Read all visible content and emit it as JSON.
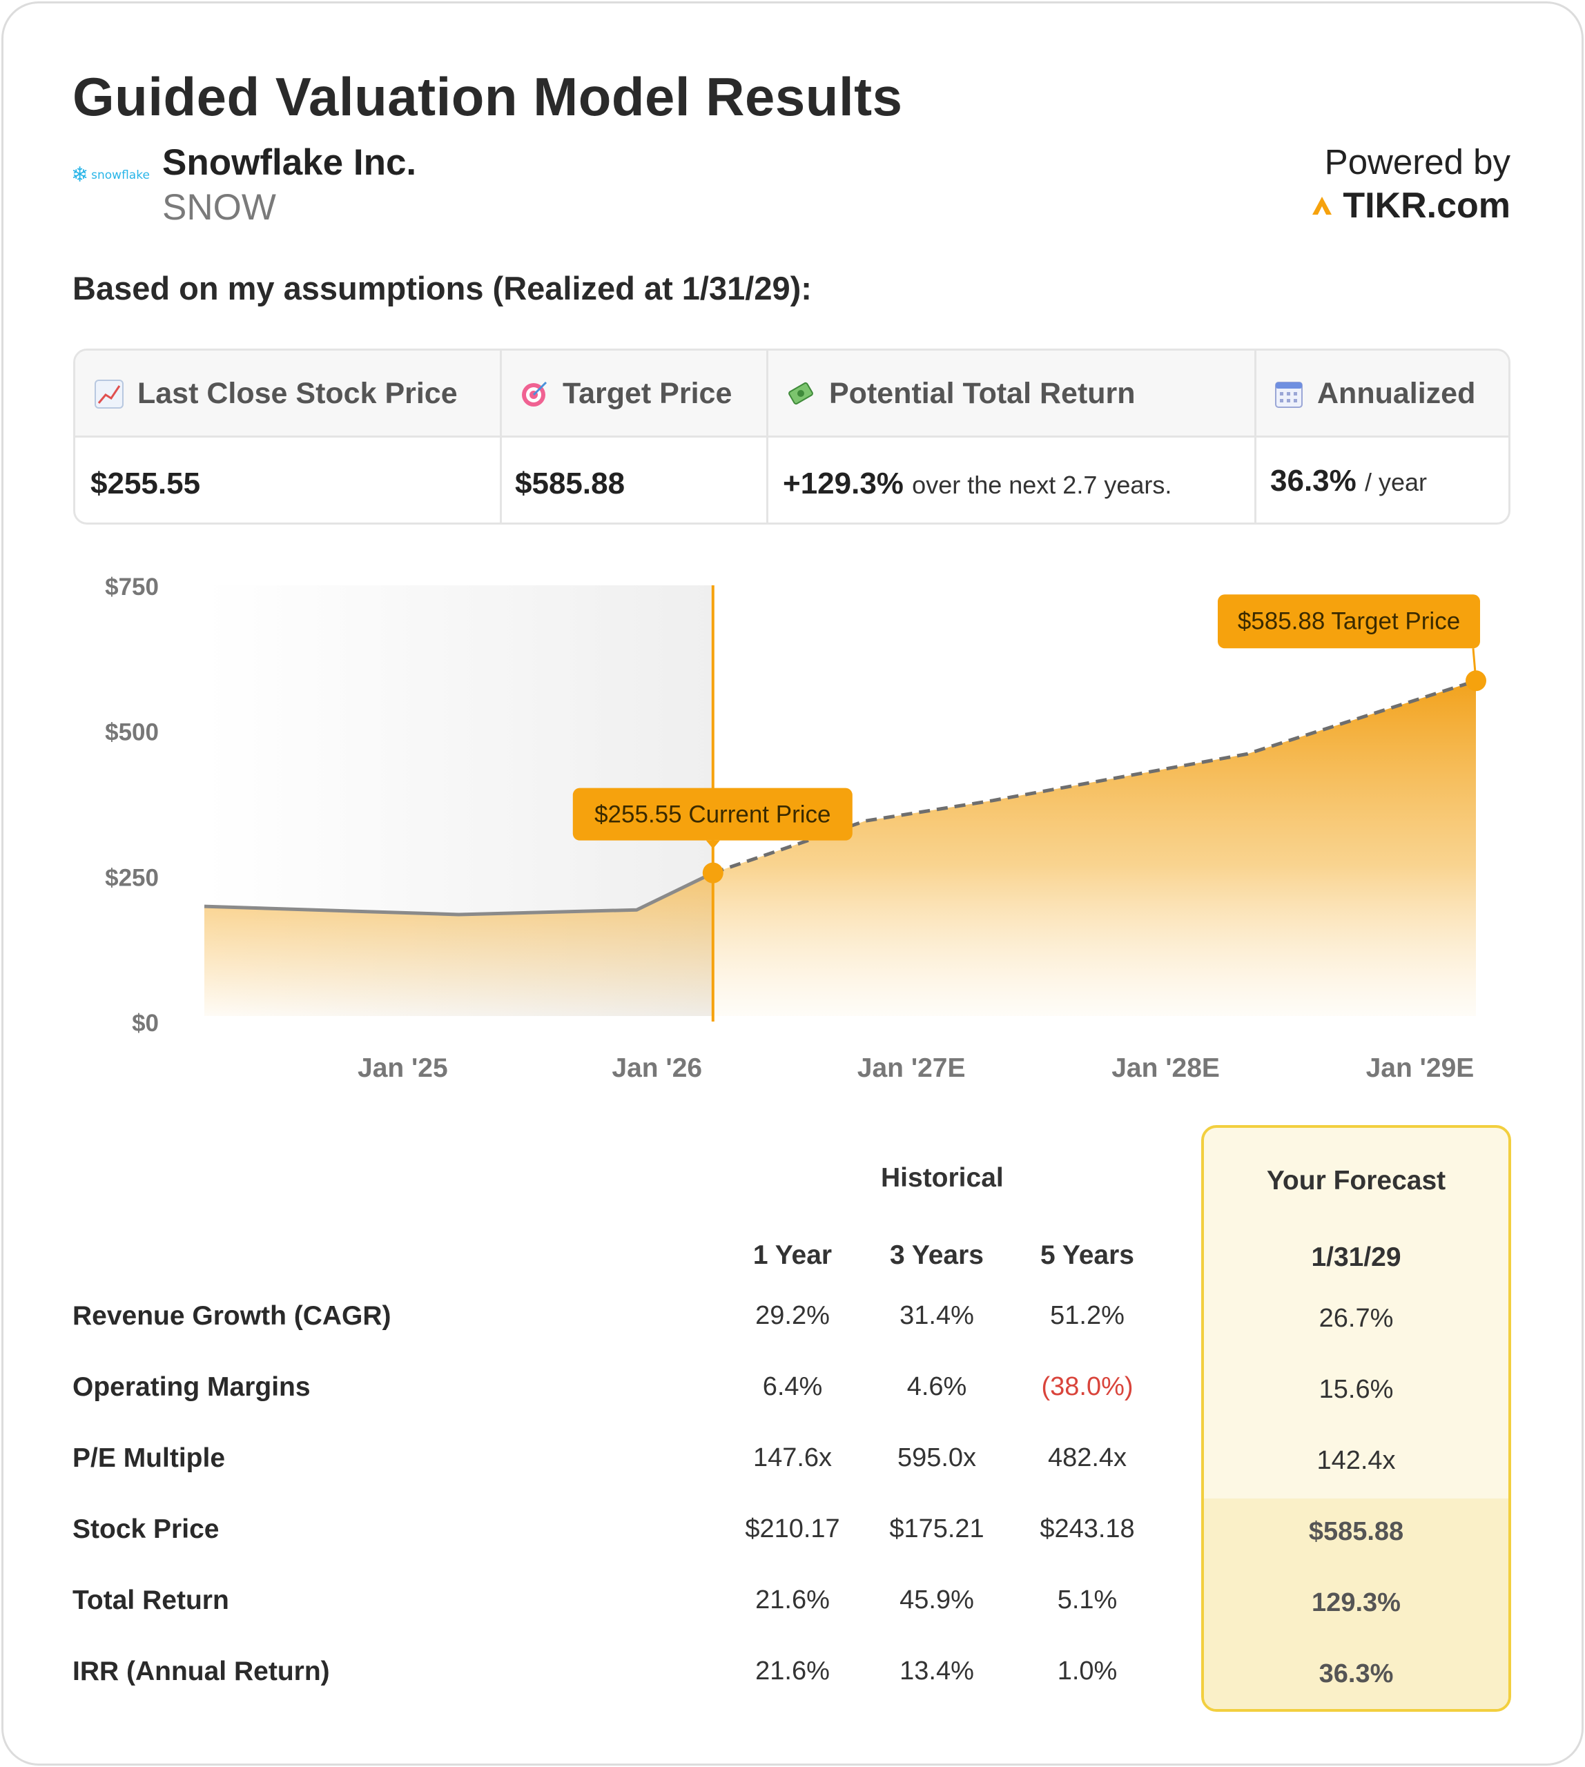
{
  "header": {
    "title": "Guided Valuation Model Results",
    "logo_text": "snowflake",
    "company": "Snowflake Inc.",
    "ticker": "SNOW",
    "powered_by": "Powered by",
    "brand": "TIKR.com",
    "assumptions": "Based on my assumptions (Realized at 1/31/29):"
  },
  "metrics": {
    "last_close": {
      "label": "Last Close Stock Price",
      "icon": "chart-increasing-icon",
      "value": "$255.55"
    },
    "target": {
      "label": "Target Price",
      "icon": "target-icon",
      "value": "$585.88"
    },
    "total_return": {
      "label": "Potential Total Return",
      "icon": "money-icon",
      "value": "+129.3%",
      "sub": "over the next 2.7 years."
    },
    "annualized": {
      "label": "Annualized",
      "icon": "calendar-icon",
      "value": "36.3%",
      "sub": "/ year"
    }
  },
  "colors": {
    "accent": "#f6a20d",
    "line_gray": "#8a8a8a",
    "negative": "#d9443b",
    "forecast_bg": "#fdf8e4",
    "forecast_border": "#f2cf3f"
  },
  "chart_data": {
    "type": "area",
    "y_ticks": [
      "$750",
      "$500",
      "$250",
      "$0"
    ],
    "y_tick_values": [
      750,
      500,
      250,
      0
    ],
    "ylim": [
      0,
      750
    ],
    "x_ticks": [
      "Jan '25",
      "Jan '26",
      "Jan '27E",
      "Jan '28E",
      "Jan '29E"
    ],
    "x_tick_values": [
      2025.08,
      2026.08,
      2027.08,
      2028.08,
      2029.08
    ],
    "xlim": [
      2024.3,
      2029.3
    ],
    "historical": {
      "x": [
        2024.3,
        2025.3,
        2026.0,
        2026.3
      ],
      "y": [
        198,
        184,
        192,
        255.55
      ]
    },
    "forecast": {
      "x": [
        2026.3,
        2026.9,
        2027.4,
        2027.9,
        2028.4,
        2029.3
      ],
      "y": [
        255.55,
        345,
        380,
        420,
        460,
        585.88
      ]
    },
    "current": {
      "x": 2026.3,
      "y": 255.55,
      "label": "$255.55 Current Price"
    },
    "target": {
      "x": 2029.3,
      "y": 585.88,
      "label": "$585.88 Target Price"
    },
    "grid": false
  },
  "table": {
    "historical_label": "Historical",
    "forecast_label": "Your Forecast",
    "columns": [
      "1 Year",
      "3 Years",
      "5 Years"
    ],
    "forecast_date": "1/31/29",
    "rows": [
      {
        "label": "Revenue Growth (CAGR)",
        "values": [
          "29.2%",
          "31.4%",
          "51.2%"
        ],
        "forecast": "26.7%"
      },
      {
        "label": "Operating Margins",
        "values": [
          "6.4%",
          "4.6%",
          "(38.0%)"
        ],
        "forecast": "15.6%"
      },
      {
        "label": "P/E Multiple",
        "values": [
          "147.6x",
          "595.0x",
          "482.4x"
        ],
        "forecast": "142.4x"
      },
      {
        "label": "Stock Price",
        "values": [
          "$210.17",
          "$175.21",
          "$243.18"
        ],
        "forecast": "$585.88"
      },
      {
        "label": "Total Return",
        "values": [
          "21.6%",
          "45.9%",
          "5.1%"
        ],
        "forecast": "129.3%"
      },
      {
        "label": "IRR (Annual Return)",
        "values": [
          "21.6%",
          "13.4%",
          "1.0%"
        ],
        "forecast": "36.3%"
      }
    ]
  }
}
